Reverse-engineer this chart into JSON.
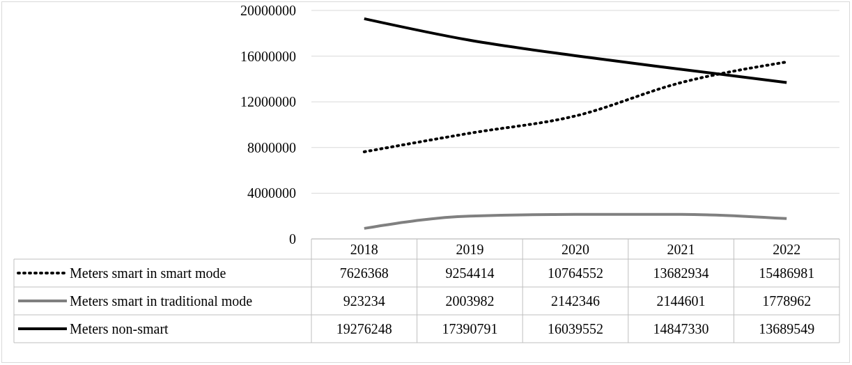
{
  "chart_data": {
    "type": "line",
    "categories": [
      "2018",
      "2019",
      "2020",
      "2021",
      "2022"
    ],
    "series": [
      {
        "name": "Meters smart in smart mode",
        "color": "#000000",
        "line_style": "dotted",
        "values": [
          7626368,
          9254414,
          10764552,
          13682934,
          15486981
        ]
      },
      {
        "name": "Meters smart in traditional mode",
        "color": "#808080",
        "line_style": "solid",
        "values": [
          923234,
          2003982,
          2142346,
          2144601,
          1778962
        ]
      },
      {
        "name": "Meters non-smart",
        "color": "#000000",
        "line_style": "solid",
        "values": [
          19276248,
          17390791,
          16039552,
          14847330,
          13689549
        ]
      }
    ],
    "ylim": [
      0,
      20000000
    ],
    "yticks": [
      0,
      4000000,
      8000000,
      12000000,
      16000000,
      20000000
    ],
    "grid": "y",
    "legend": "bottom",
    "data_labels": true,
    "marker": "none"
  }
}
